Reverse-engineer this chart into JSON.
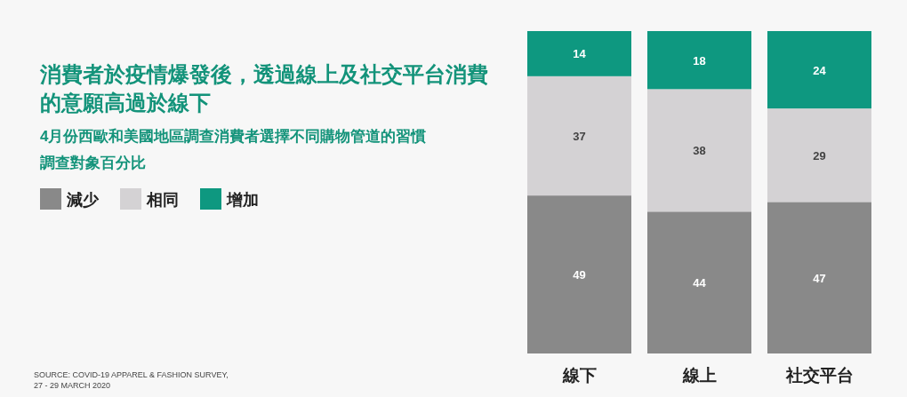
{
  "chart_data": {
    "type": "bar",
    "stacked": true,
    "title": "消費者於疫情爆發後，透過線上及社交平台消費的意願高過於線下",
    "subtitle": "4月份西歐和美國地區調查消費者選擇不同購物管道的習慣",
    "categories": [
      "線下",
      "線上",
      "社交平台"
    ],
    "series": [
      {
        "name": "減少",
        "color": "#898989",
        "values": [
          49,
          44,
          47
        ]
      },
      {
        "name": "相同",
        "color": "#d4d2d4",
        "values": [
          37,
          38,
          29
        ]
      },
      {
        "name": "增加",
        "color": "#0e9880",
        "values": [
          14,
          18,
          24
        ]
      }
    ],
    "data_labels": true,
    "legend": "left",
    "annotations": [
      "調查對象百分比",
      "SOURCE: COVID-19 APPAREL & FASHION SURVEY,\n27 - 29 MARCH 2020"
    ]
  }
}
